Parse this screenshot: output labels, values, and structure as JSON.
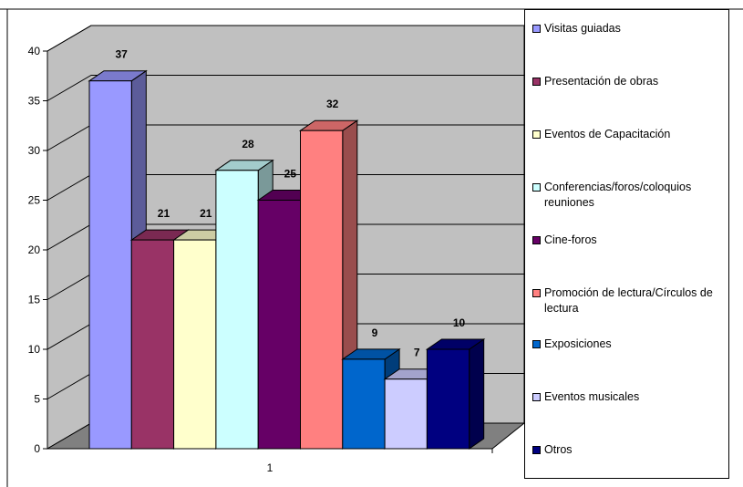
{
  "chart_data": {
    "type": "bar",
    "title": "",
    "xlabel": "",
    "ylabel": "",
    "categories": [
      "1"
    ],
    "ylim": [
      0,
      40
    ],
    "yticks": [
      0,
      5,
      10,
      15,
      20,
      25,
      30,
      35,
      40
    ],
    "grid": true,
    "three_d": true,
    "legend_placement": "right",
    "series": [
      {
        "name": "Visitas guiadas",
        "values": [
          37
        ],
        "color": "#9999ff"
      },
      {
        "name": "Presentación de obras",
        "values": [
          21
        ],
        "color": "#993366"
      },
      {
        "name": "Eventos de Capacitación",
        "values": [
          21
        ],
        "color": "#ffffcc"
      },
      {
        "name": "Conferencias/foros/coloquios reuniones",
        "values": [
          28
        ],
        "color": "#ccffff"
      },
      {
        "name": "Cine-foros",
        "values": [
          25
        ],
        "color": "#660066"
      },
      {
        "name": "Promoción de lectura/Círculos de lectura",
        "values": [
          32
        ],
        "color": "#ff8080"
      },
      {
        "name": "Exposiciones",
        "values": [
          9
        ],
        "color": "#0066cc"
      },
      {
        "name": "Eventos musicales",
        "values": [
          7
        ],
        "color": "#ccccff"
      },
      {
        "name": "Otros",
        "values": [
          10
        ],
        "color": "#000080"
      }
    ],
    "wall_color": "#c0c0c0",
    "floor_color": "#808080"
  }
}
